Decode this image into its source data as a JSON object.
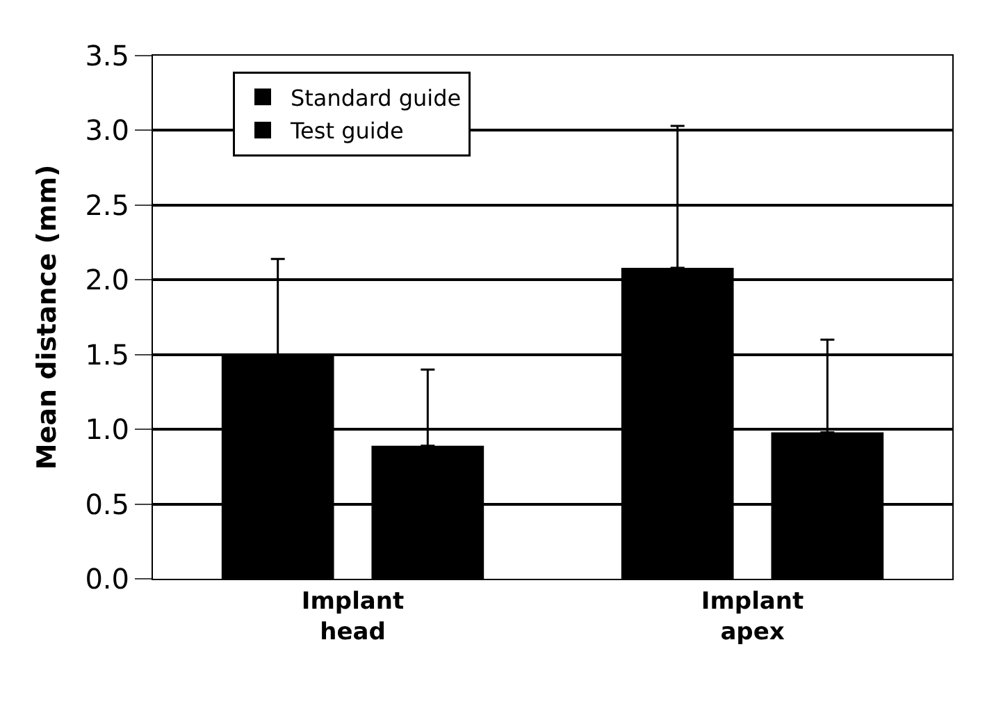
{
  "chart_data": {
    "type": "bar",
    "ylabel": "Mean distance (mm)",
    "categories": [
      "Implant\nhead",
      "Implant\napex"
    ],
    "series": [
      {
        "name": "Standard guide",
        "color": "#000000",
        "values": [
          1.5,
          2.08
        ],
        "errors": [
          [
            1.5,
            2.14
          ],
          [
            2.08,
            3.03
          ]
        ]
      },
      {
        "name": "Test guide",
        "color": "#000000",
        "values": [
          0.89,
          0.98
        ],
        "errors": [
          [
            0.89,
            1.4
          ],
          [
            0.98,
            1.6
          ]
        ]
      }
    ],
    "ylim": [
      0,
      3.5
    ],
    "yticks": [
      {
        "value": 0,
        "label": "0.0"
      },
      {
        "value": 0.5,
        "label": "0.5"
      },
      {
        "value": 1,
        "label": "1.0"
      },
      {
        "value": 1.5,
        "label": "1.5"
      },
      {
        "value": 2,
        "label": "2.0"
      },
      {
        "value": 2.5,
        "label": "2.5"
      },
      {
        "value": 3,
        "label": "3.0"
      },
      {
        "value": 3.5,
        "label": "3.5"
      }
    ],
    "grid": "y",
    "legend": "top left"
  }
}
